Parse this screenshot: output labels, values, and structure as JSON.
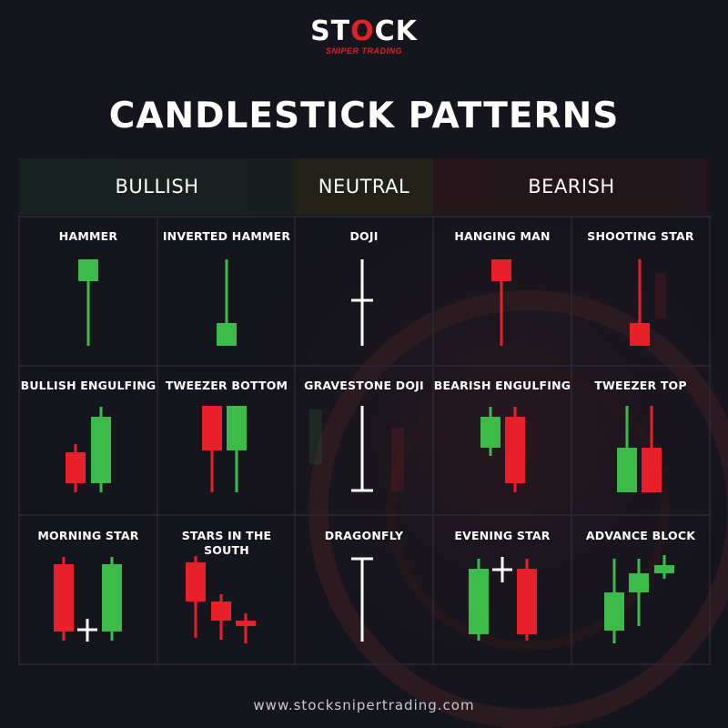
{
  "brand": {
    "logo_main": "STOCK",
    "logo_sub": "SNIPER TRADING",
    "website": "www.stocksnipertrading.com"
  },
  "title": "CANDLESTICK PATTERNS",
  "categories": {
    "bullish": "BULLISH",
    "neutral": "NEUTRAL",
    "bearish": "BEARISH"
  },
  "colors": {
    "bullish": "#3dbb4a",
    "bearish": "#e8202a",
    "neutral": "#ffffff",
    "background": "#15151d",
    "grid_line": "#2a2630"
  },
  "patterns": [
    {
      "label": "HAMMER",
      "row": 0,
      "col": 0
    },
    {
      "label": "INVERTED HAMMER",
      "row": 0,
      "col": 1
    },
    {
      "label": "DOJI",
      "row": 0,
      "col": 2
    },
    {
      "label": "HANGING MAN",
      "row": 0,
      "col": 3
    },
    {
      "label": "SHOOTING STAR",
      "row": 0,
      "col": 4
    },
    {
      "label": "BULLISH ENGULFING",
      "row": 1,
      "col": 0
    },
    {
      "label": "TWEEZER BOTTOM",
      "row": 1,
      "col": 1
    },
    {
      "label": "GRAVESTONE DOJI",
      "row": 1,
      "col": 2
    },
    {
      "label": "BEARISH ENGULFING",
      "row": 1,
      "col": 3
    },
    {
      "label": "TWEEZER TOP",
      "row": 1,
      "col": 4
    },
    {
      "label": "MORNING STAR",
      "row": 2,
      "col": 0
    },
    {
      "label": "STARS IN THE SOUTH",
      "row": 2,
      "col": 1
    },
    {
      "label": "DRAGONFLY",
      "row": 2,
      "col": 2
    },
    {
      "label": "EVENING STAR",
      "row": 2,
      "col": 3
    },
    {
      "label": "ADVANCE BLOCK",
      "row": 2,
      "col": 4
    }
  ]
}
